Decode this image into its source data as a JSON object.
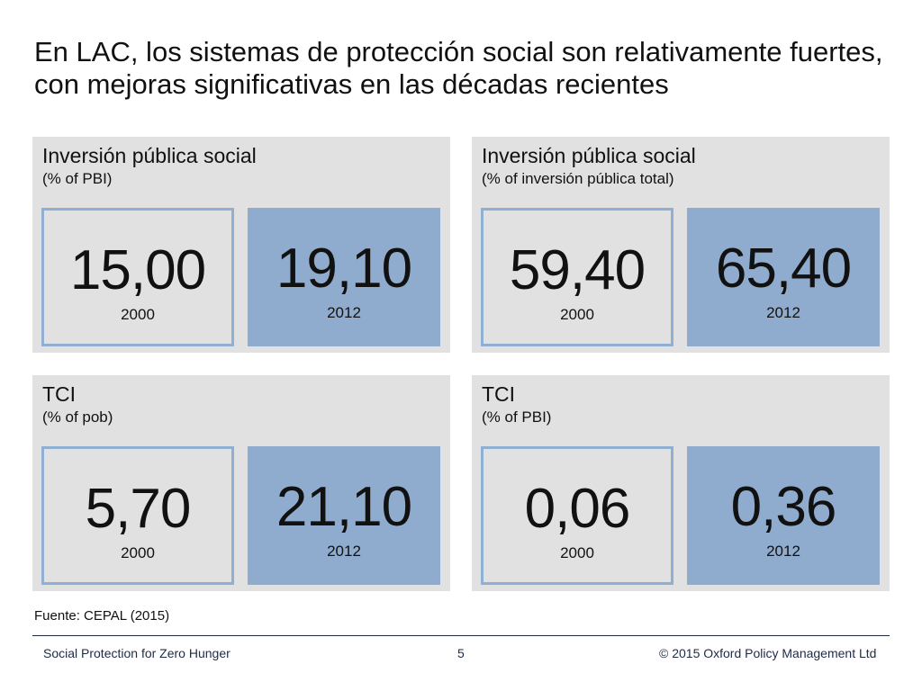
{
  "slide": {
    "title": "En LAC, los sistemas de protección social son relativamente fuertes, con mejoras significativas en las décadas recientes",
    "panels": [
      {
        "title": "Inversión pública social",
        "subtitle": "(% of PBI)",
        "left": {
          "value": "15,00",
          "year": "2000"
        },
        "right": {
          "value": "19,10",
          "year": "2012"
        }
      },
      {
        "title": "Inversión pública social",
        "subtitle": "(% of inversión pública total)",
        "left": {
          "value": "59,40",
          "year": "2000"
        },
        "right": {
          "value": "65,40",
          "year": "2012"
        }
      },
      {
        "title": "TCI",
        "subtitle": "(% of pob)",
        "left": {
          "value": "5,70",
          "year": "2000"
        },
        "right": {
          "value": "21,10",
          "year": "2012"
        }
      },
      {
        "title": "TCI",
        "subtitle": "(% of PBI)",
        "left": {
          "value": "0,06",
          "year": "2000"
        },
        "right": {
          "value": "0,36",
          "year": "2012"
        }
      }
    ],
    "source": "Fuente: CEPAL (2015)"
  },
  "footer": {
    "left": "Social Protection for Zero Hunger",
    "page_number": "5",
    "right": "© 2015 Oxford Policy Management Ltd"
  },
  "colors": {
    "panel_background": "#e1e1e1",
    "box_outline": "#8fb0d2",
    "box_fill_2012": "#8fabcd",
    "footer_text": "#1f2a44"
  }
}
